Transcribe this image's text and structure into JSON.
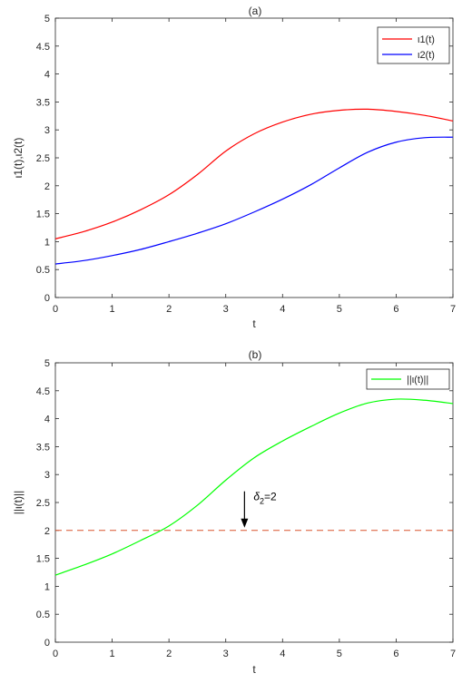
{
  "chart_data": [
    {
      "type": "line",
      "title": "(a)",
      "xlabel": "t",
      "ylabel": "ι1(t),ι2(t)",
      "xlim": [
        0,
        7
      ],
      "ylim": [
        0,
        5
      ],
      "xticks": [
        "0",
        "1",
        "2",
        "3",
        "4",
        "5",
        "6",
        "7"
      ],
      "yticks": [
        "0",
        "0.5",
        "1",
        "1.5",
        "2",
        "2.5",
        "3",
        "3.5",
        "4",
        "4.5",
        "5"
      ],
      "grid": false,
      "legend_position": "top-right",
      "series": [
        {
          "name": "ι1(t)",
          "color": "#ff0000",
          "x": [
            0,
            0.5,
            1,
            1.5,
            2,
            2.5,
            3,
            3.5,
            4,
            4.5,
            5,
            5.5,
            6,
            6.5,
            7
          ],
          "y": [
            1.05,
            1.18,
            1.35,
            1.57,
            1.84,
            2.2,
            2.62,
            2.93,
            3.14,
            3.28,
            3.35,
            3.37,
            3.33,
            3.26,
            3.16
          ]
        },
        {
          "name": "ι2(t)",
          "color": "#0000ff",
          "x": [
            0,
            0.5,
            1,
            1.5,
            2,
            2.5,
            3,
            3.5,
            4,
            4.5,
            5,
            5.5,
            6,
            6.5,
            7
          ],
          "y": [
            0.6,
            0.66,
            0.75,
            0.86,
            1.0,
            1.15,
            1.32,
            1.53,
            1.76,
            2.02,
            2.32,
            2.6,
            2.78,
            2.86,
            2.87
          ]
        }
      ]
    },
    {
      "type": "line",
      "title": "(b)",
      "xlabel": "t",
      "ylabel": "||ι(t)||",
      "xlim": [
        0,
        7
      ],
      "ylim": [
        0,
        5
      ],
      "xticks": [
        "0",
        "1",
        "2",
        "3",
        "4",
        "5",
        "6",
        "7"
      ],
      "yticks": [
        "0",
        "0.5",
        "1",
        "1.5",
        "2",
        "2.5",
        "3",
        "3.5",
        "4",
        "4.5",
        "5"
      ],
      "grid": false,
      "legend_position": "top-right",
      "series": [
        {
          "name": "||ι(t)||",
          "color": "#00ff00",
          "x": [
            0,
            0.5,
            1,
            1.5,
            2,
            2.5,
            3,
            3.5,
            4,
            4.5,
            5,
            5.5,
            6,
            6.5,
            7
          ],
          "y": [
            1.2,
            1.38,
            1.58,
            1.82,
            2.08,
            2.45,
            2.9,
            3.3,
            3.6,
            3.86,
            4.1,
            4.28,
            4.35,
            4.33,
            4.27
          ]
        }
      ],
      "threshold": {
        "y": 2,
        "color": "#d9542e",
        "style": "dashed"
      },
      "annotation": {
        "text_main": "δ",
        "text_sub": "2",
        "text_tail": "=2",
        "arrow_x": 3.33,
        "arrow_from_y": 2.7,
        "arrow_to_y": 2.05
      }
    }
  ]
}
